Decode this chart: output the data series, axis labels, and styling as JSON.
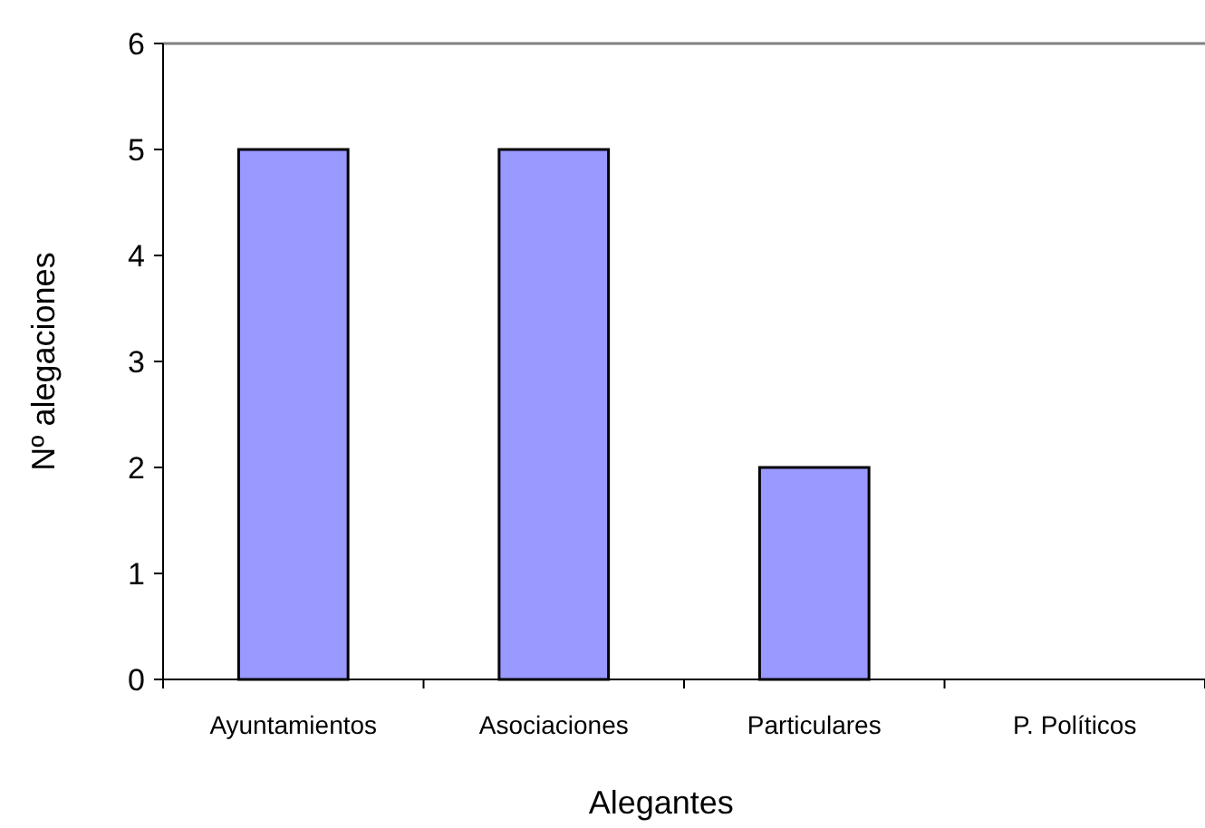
{
  "chart_data": {
    "type": "bar",
    "xlabel": "Alegantes",
    "ylabel": "Nº alegaciones",
    "categories": [
      "Ayuntamientos",
      "Asociaciones",
      "Particulares",
      "P. Políticos"
    ],
    "values": [
      5,
      5,
      2,
      0
    ],
    "color": "#9999ff",
    "ylim": [
      0,
      6
    ],
    "yticks": [
      0,
      1,
      2,
      3,
      4,
      5,
      6
    ],
    "grid": false
  }
}
